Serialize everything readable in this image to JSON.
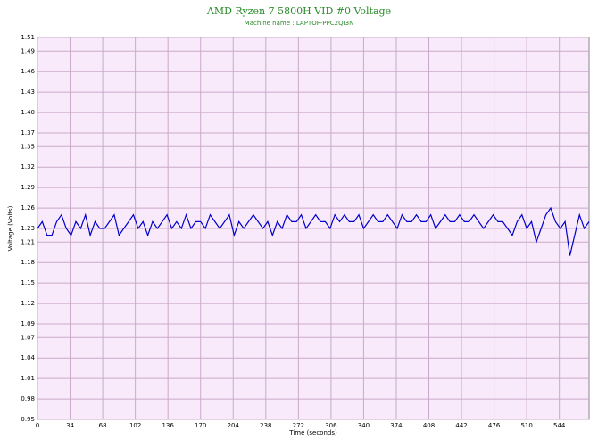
{
  "chart_data": {
    "type": "line",
    "title": "AMD Ryzen 7 5800H VID #0 Voltage",
    "subtitle": "Machine name : LAPTOP-PPC2QI3N",
    "xlabel": "Time (seconds)",
    "ylabel": "Voltage (Volts)",
    "color": "#0000cc",
    "grid": true,
    "x": [
      0,
      5,
      10,
      15,
      20,
      25,
      30,
      35,
      40,
      45,
      50,
      55,
      60,
      65,
      70,
      75,
      80,
      85,
      90,
      95,
      100,
      105,
      110,
      115,
      120,
      125,
      130,
      135,
      140,
      145,
      150,
      155,
      160,
      165,
      170,
      175,
      180,
      185,
      190,
      195,
      200,
      205,
      210,
      215,
      220,
      225,
      230,
      235,
      240,
      245,
      250,
      255,
      260,
      265,
      270,
      275,
      280,
      285,
      290,
      295,
      300,
      305,
      310,
      315,
      320,
      325,
      330,
      335,
      340,
      345,
      350,
      355,
      360,
      365,
      370,
      375,
      380,
      385,
      390,
      395,
      400,
      405,
      410,
      415,
      420,
      425,
      430,
      435,
      440,
      445,
      450,
      455,
      460,
      465,
      470,
      475,
      480,
      485,
      490,
      495,
      500,
      505,
      510,
      515,
      520,
      525,
      530,
      535,
      540,
      545,
      550,
      555,
      560,
      565,
      570,
      575
    ],
    "values": [
      1.23,
      1.24,
      1.22,
      1.22,
      1.24,
      1.25,
      1.23,
      1.22,
      1.24,
      1.23,
      1.25,
      1.22,
      1.24,
      1.23,
      1.23,
      1.24,
      1.25,
      1.22,
      1.23,
      1.24,
      1.25,
      1.23,
      1.24,
      1.22,
      1.24,
      1.23,
      1.24,
      1.25,
      1.23,
      1.24,
      1.23,
      1.25,
      1.23,
      1.24,
      1.24,
      1.23,
      1.25,
      1.24,
      1.23,
      1.24,
      1.25,
      1.22,
      1.24,
      1.23,
      1.24,
      1.25,
      1.24,
      1.23,
      1.24,
      1.22,
      1.24,
      1.23,
      1.25,
      1.24,
      1.24,
      1.25,
      1.23,
      1.24,
      1.25,
      1.24,
      1.24,
      1.23,
      1.25,
      1.24,
      1.25,
      1.24,
      1.24,
      1.25,
      1.23,
      1.24,
      1.25,
      1.24,
      1.24,
      1.25,
      1.24,
      1.23,
      1.25,
      1.24,
      1.24,
      1.25,
      1.24,
      1.24,
      1.25,
      1.23,
      1.24,
      1.25,
      1.24,
      1.24,
      1.25,
      1.24,
      1.24,
      1.25,
      1.24,
      1.23,
      1.24,
      1.25,
      1.24,
      1.24,
      1.23,
      1.22,
      1.24,
      1.25,
      1.23,
      1.24,
      1.21,
      1.23,
      1.25,
      1.26,
      1.24,
      1.23,
      1.24,
      1.19,
      1.22,
      1.25,
      1.23,
      1.24
    ],
    "xlim": [
      0,
      575
    ],
    "xticks": [
      0,
      34,
      68,
      102,
      136,
      170,
      204,
      238,
      272,
      306,
      340,
      374,
      408,
      442,
      476,
      510,
      544
    ],
    "ylim": [
      0.95,
      1.51
    ],
    "yticks": [
      0.95,
      0.98,
      1.01,
      1.04,
      1.07,
      1.09,
      1.12,
      1.15,
      1.18,
      1.21,
      1.23,
      1.26,
      1.29,
      1.32,
      1.35,
      1.37,
      {
        "value": 1.4,
        "label": "1.40"
      },
      1.43,
      1.46,
      1.49,
      1.51
    ]
  }
}
